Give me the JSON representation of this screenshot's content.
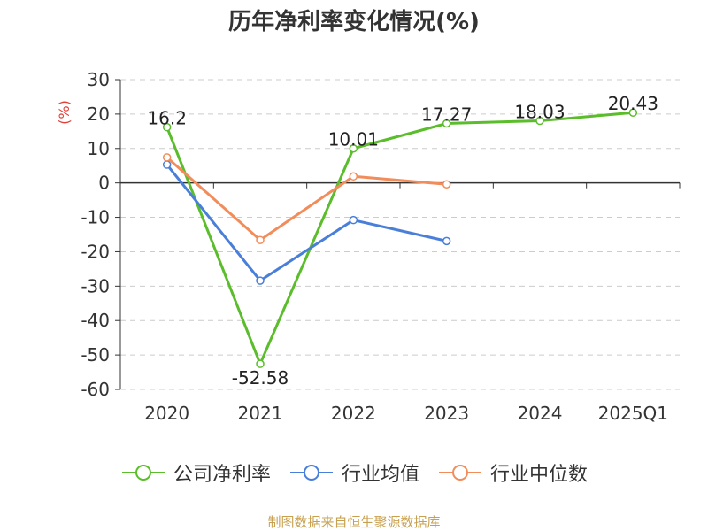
{
  "chart_data": {
    "type": "line",
    "title": "历年净利率变化情况(%)",
    "ylabel": "(%)",
    "xlabel": "",
    "categories": [
      "2020",
      "2021",
      "2022",
      "2023",
      "2024",
      "2025Q1"
    ],
    "ylim": [
      -60,
      30
    ],
    "yticks": [
      30,
      20,
      10,
      0,
      -10,
      -20,
      -30,
      -40,
      -50,
      -60
    ],
    "grid": true,
    "legend_position": "bottom",
    "series": [
      {
        "name": "公司净利率",
        "color": "#5bbd2b",
        "values": [
          16.2,
          -52.58,
          10.01,
          17.27,
          18.03,
          20.43
        ],
        "labels": [
          "16.2",
          "-52.58",
          "10.01",
          "17.27",
          "18.03",
          "20.43"
        ]
      },
      {
        "name": "行业均值",
        "color": "#4a7fd9",
        "values": [
          5.3,
          -28.4,
          -10.8,
          -16.9,
          null,
          null
        ]
      },
      {
        "name": "行业中位数",
        "color": "#f28c5a",
        "values": [
          7.4,
          -16.6,
          1.9,
          -0.4,
          null,
          null
        ]
      }
    ]
  },
  "source_note": "制图数据来自恒生聚源数据库"
}
